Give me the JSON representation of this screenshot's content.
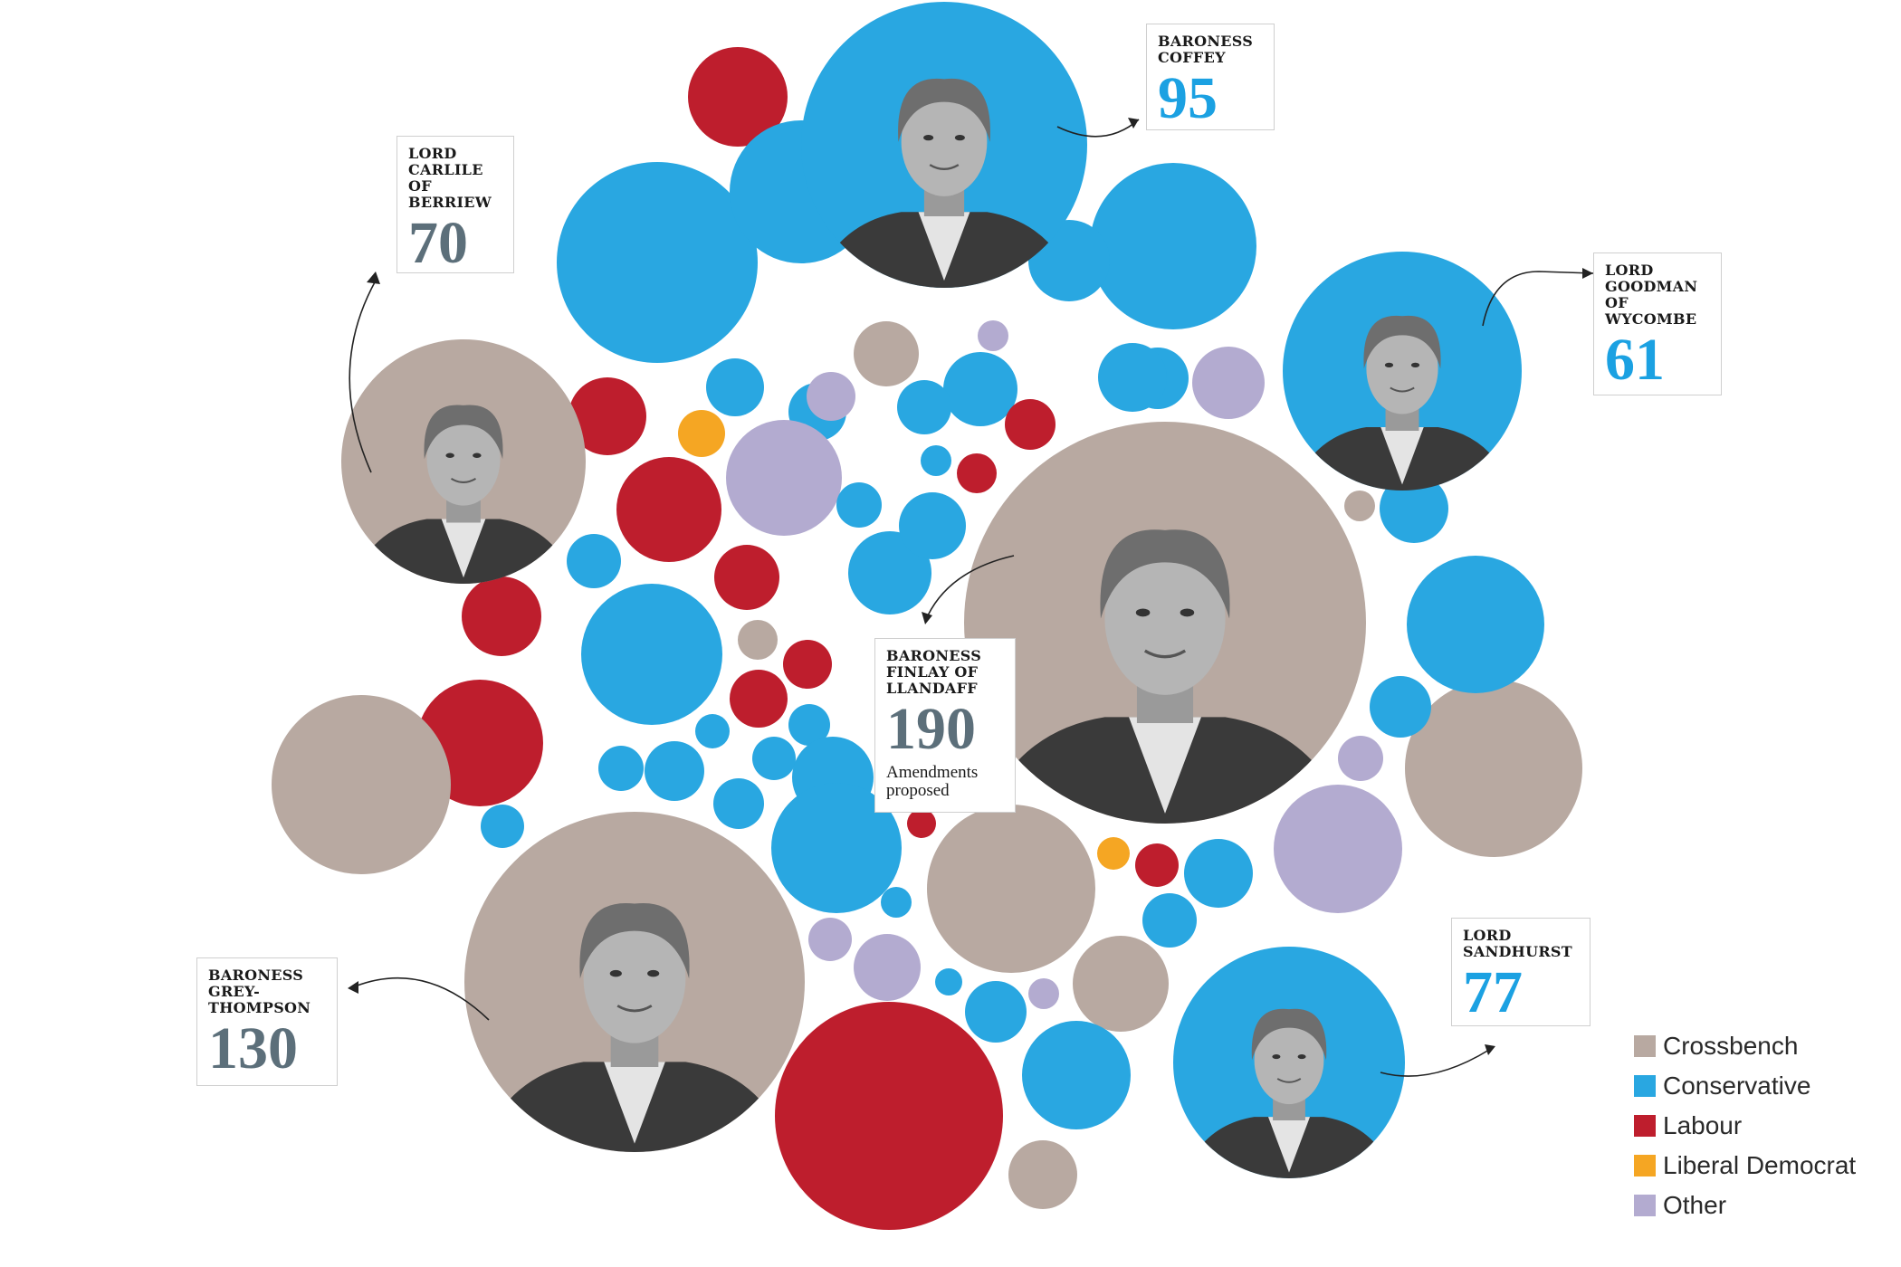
{
  "colors": {
    "Crossbench": "#b8a9a1",
    "Conservative": "#29a7e1",
    "Labour": "#be1e2d",
    "Liberal Democrat": "#f5a623",
    "Other": "#b3abd0",
    "number_crossbench": "#5c6f7a",
    "number_conservative": "#1ba1e2"
  },
  "legend": [
    {
      "label": "Crossbench",
      "party": "Crossbench"
    },
    {
      "label": "Conservative",
      "party": "Conservative"
    },
    {
      "label": "Labour",
      "party": "Labour"
    },
    {
      "label": "Liberal Democrat",
      "party": "Liberal Democrat"
    },
    {
      "label": "Other",
      "party": "Other"
    }
  ],
  "chart_data": {
    "type": "scatter",
    "description_unit": "Amendments proposed",
    "highlighted_peers": [
      {
        "id": "finlay",
        "name": "BARONESS\nFINLAY OF\nLLANDAFF",
        "amendments": 190,
        "party": "Crossbench",
        "note": "Amendments\nproposed"
      },
      {
        "id": "grey-thompson",
        "name": "BARONESS\nGREY-\nTHOMPSON",
        "amendments": 130,
        "party": "Crossbench"
      },
      {
        "id": "coffey",
        "name": "BARONESS\nCOFFEY",
        "amendments": 95,
        "party": "Conservative"
      },
      {
        "id": "sandhurst",
        "name": "LORD\nSANDHURST",
        "amendments": 77,
        "party": "Conservative"
      },
      {
        "id": "carlile",
        "name": "LORD\nCARLILE\nOF\nBERRIEW",
        "amendments": 70,
        "party": "Crossbench"
      },
      {
        "id": "goodman",
        "name": "LORD\nGOODMAN\nOF\nWYCOMBE",
        "amendments": 61,
        "party": "Conservative"
      }
    ]
  }
}
